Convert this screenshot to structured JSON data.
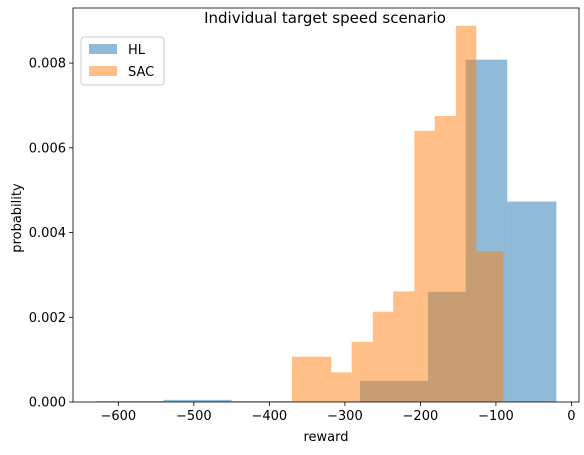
{
  "chart_data": {
    "type": "histogram",
    "title": "Individual target speed scenario",
    "xlabel": "reward",
    "ylabel": "probability",
    "xlim": [
      -660,
      10
    ],
    "ylim": [
      0,
      0.0093
    ],
    "x_ticks": [
      -600,
      -500,
      -400,
      -300,
      -200,
      -100,
      0
    ],
    "x_tick_labels": [
      "−600",
      "−500",
      "−400",
      "−300",
      "−200",
      "−100",
      "0"
    ],
    "y_ticks": [
      0.0,
      0.002,
      0.004,
      0.006,
      0.008
    ],
    "y_tick_labels": [
      "0.000",
      "0.002",
      "0.004",
      "0.006",
      "0.008"
    ],
    "legend_position": "upper-left",
    "alpha": 0.5,
    "series": [
      {
        "name": "HL",
        "color": "#1f77b4",
        "bins": [
          {
            "x0": -630,
            "x1": -540,
            "value": 2e-05
          },
          {
            "x0": -540,
            "x1": -450,
            "value": 5e-05
          },
          {
            "x0": -450,
            "x1": -370,
            "value": 2e-05
          },
          {
            "x0": -370,
            "x1": -280,
            "value": 0.0
          },
          {
            "x0": -280,
            "x1": -190,
            "value": 0.0005
          },
          {
            "x0": -190,
            "x1": -140,
            "value": 0.0026
          },
          {
            "x0": -140,
            "x1": -85,
            "value": 0.00808
          },
          {
            "x0": -85,
            "x1": -20,
            "value": 0.00473
          }
        ]
      },
      {
        "name": "SAC",
        "color": "#ff7f0e",
        "bins": [
          {
            "x0": -370,
            "x1": -318,
            "value": 0.00107
          },
          {
            "x0": -318,
            "x1": -291,
            "value": 0.0007
          },
          {
            "x0": -291,
            "x1": -263,
            "value": 0.00142
          },
          {
            "x0": -263,
            "x1": -236,
            "value": 0.00213
          },
          {
            "x0": -236,
            "x1": -208,
            "value": 0.00261
          },
          {
            "x0": -208,
            "x1": -181,
            "value": 0.0064
          },
          {
            "x0": -181,
            "x1": -153,
            "value": 0.00675
          },
          {
            "x0": -153,
            "x1": -126,
            "value": 0.00888
          },
          {
            "x0": -126,
            "x1": -90,
            "value": 0.00356
          }
        ]
      }
    ]
  }
}
